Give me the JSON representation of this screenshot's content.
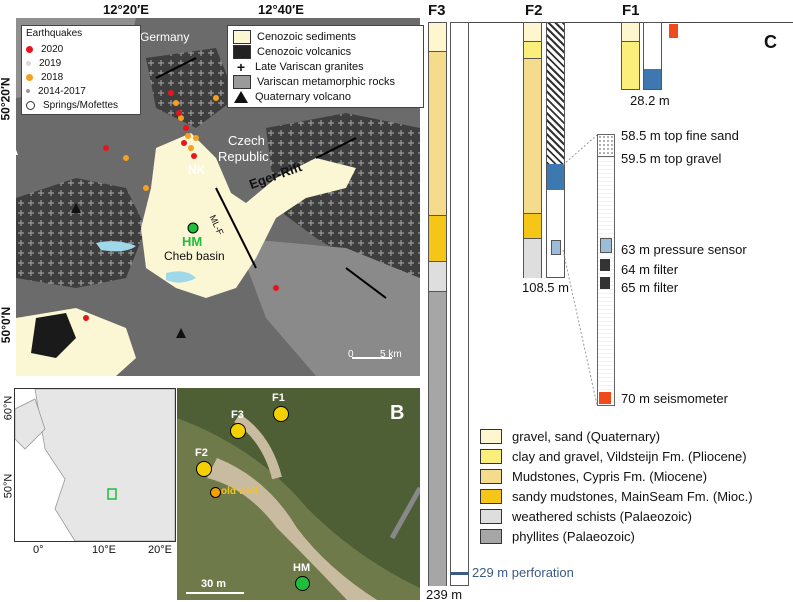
{
  "top_coords": {
    "lon1": "12°20′E",
    "lon2": "12°40′E"
  },
  "side_coords": {
    "lat1": "50°20′N",
    "lat2": "50°0′N"
  },
  "panel_labels": {
    "a": "A",
    "b": "B",
    "c": "C"
  },
  "earthquake_legend": {
    "title": "Earthquakes",
    "items": [
      {
        "label": "2020",
        "color": "#e8141c"
      },
      {
        "label": "2019",
        "color": "#d9d9d9"
      },
      {
        "label": "2018",
        "color": "#f4a020"
      },
      {
        "label": "2014-2017",
        "color": "#9a9a9a"
      },
      {
        "label": "Springs/Mofettes",
        "color": "#ffffff"
      }
    ]
  },
  "geology_legend": {
    "items": [
      {
        "label": "Cenozoic sediments",
        "color": "#fbf6d4",
        "icon": "swatch"
      },
      {
        "label": "Cenozoic volcanics",
        "color": "#222222",
        "icon": "swatch"
      },
      {
        "label": "Late Variscan granites",
        "color": "#ffffff",
        "icon": "cross"
      },
      {
        "label": "Variscan metamorphic rocks",
        "color": "#9a9a9a",
        "icon": "swatch"
      },
      {
        "label": "Quaternary volcano",
        "color": "#111111",
        "icon": "triangle"
      }
    ]
  },
  "map_labels": {
    "germany": "Germany",
    "czech1": "Czech",
    "czech2": "Republic",
    "nk": "NK",
    "eger": "Eger-Rift",
    "mlf": "ML-F",
    "hm": "HM",
    "cheb": "Cheb basin",
    "scale0": "0",
    "scale5": "5 km"
  },
  "inset": {
    "lat60": "60°N",
    "lat50": "50°N",
    "lon0": "0°",
    "lon10": "10°E",
    "lon20": "20°E"
  },
  "aerial": {
    "wells": [
      "F1",
      "F2",
      "F3"
    ],
    "old_well": "old well",
    "hm": "HM",
    "scale": "30 m"
  },
  "columns": {
    "f3": {
      "title": "F3",
      "depth": "239 m",
      "perforation": "229 m perforation"
    },
    "f2": {
      "title": "F2",
      "depth": "108.5 m"
    },
    "f1": {
      "title": "F1",
      "depth": "28.2 m"
    }
  },
  "annotations": [
    "58.5 m top fine sand",
    "59.5 m top gravel",
    "63 m pressure sensor",
    "64 m filter",
    "65 m filter",
    "70 m seismometer"
  ],
  "lithology_legend": [
    {
      "label": "gravel, sand (Quaternary)",
      "color": "#fdf6cf"
    },
    {
      "label": "clay and gravel, Vildsteijn Fm. (Pliocene)",
      "color": "#fbee7a"
    },
    {
      "label": "Mudstones, Cypris Fm. (Miocene)",
      "color": "#f5dc8c"
    },
    {
      "label": "sandy mudstones, MainSeam Fm. (Mioc.)",
      "color": "#f5c518"
    },
    {
      "label": "weathered schists (Palaeozoic)",
      "color": "#dedede"
    },
    {
      "label": "phyllites (Palaeozoic)",
      "color": "#a6a6a6"
    }
  ]
}
